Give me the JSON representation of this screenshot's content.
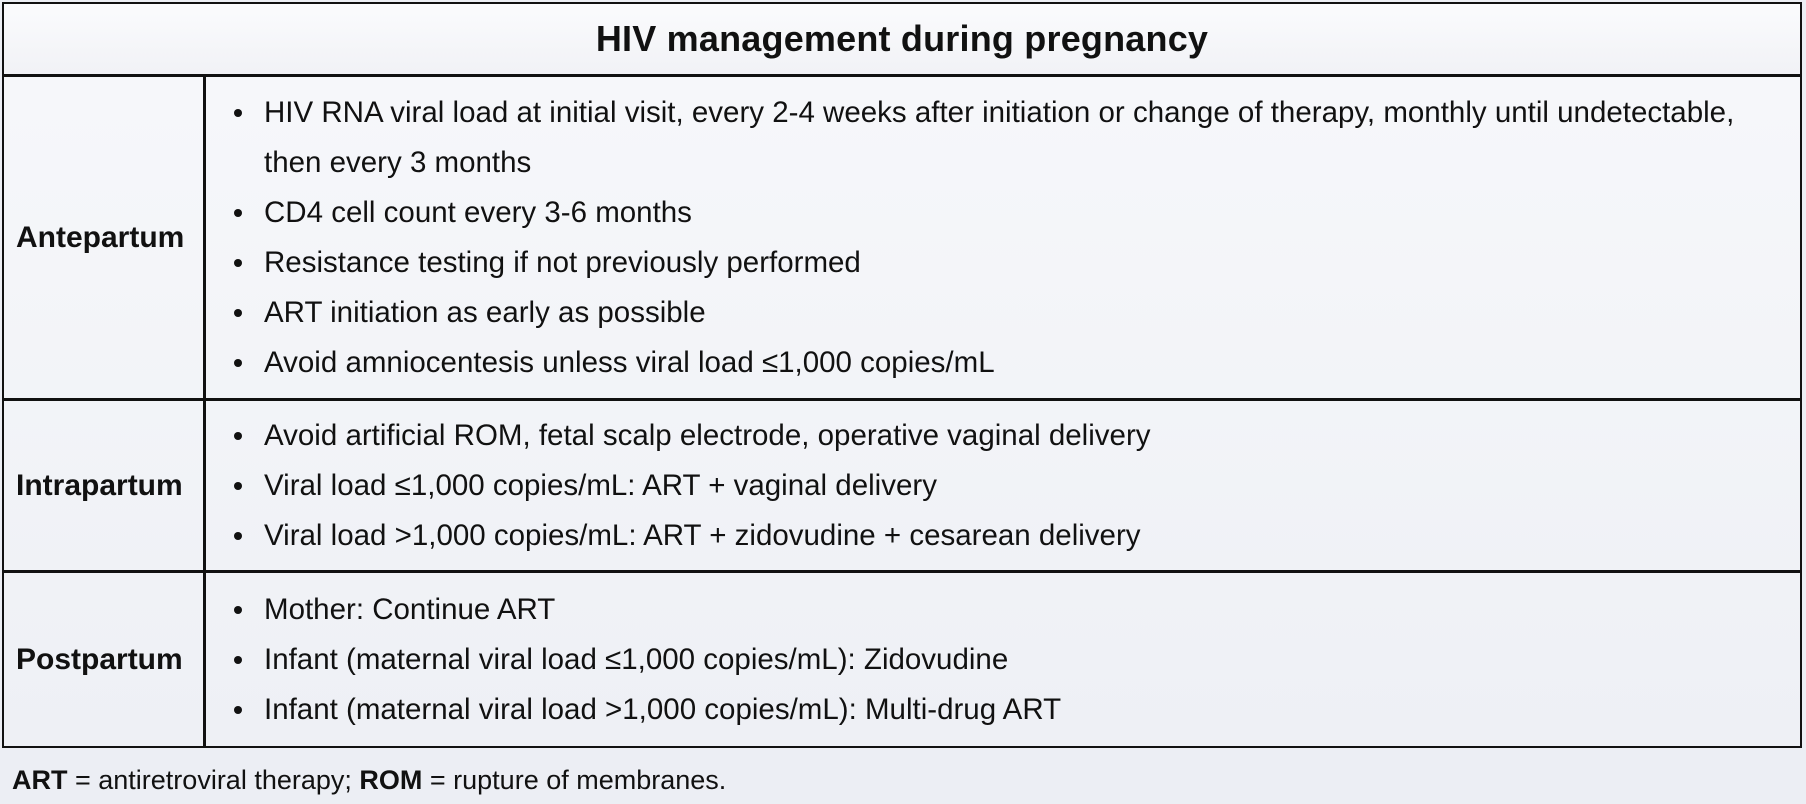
{
  "table": {
    "title": "HIV management during pregnancy",
    "rows": [
      {
        "label": "Antepartum",
        "items": [
          "HIV RNA viral load at initial visit, every 2-4 weeks after initiation or change of therapy, monthly until undetectable, then every 3 months",
          "CD4 cell count every 3-6 months",
          "Resistance testing if not previously performed",
          "ART initiation as early as possible",
          "Avoid amniocentesis unless viral load ≤1,000 copies/mL"
        ]
      },
      {
        "label": "Intrapartum",
        "items": [
          "Avoid artificial ROM, fetal scalp electrode, operative vaginal delivery",
          "Viral load ≤1,000 copies/mL: ART + vaginal delivery",
          "Viral load >1,000 copies/mL: ART + zidovudine + cesarean delivery"
        ]
      },
      {
        "label": "Postpartum",
        "items": [
          "Mother: Continue ART",
          "Infant (maternal viral load ≤1,000 copies/mL): Zidovudine",
          "Infant (maternal viral load >1,000 copies/mL): Multi-drug ART"
        ]
      }
    ]
  },
  "footnote": {
    "abbr1": "ART",
    "def1": " = antiretroviral therapy; ",
    "abbr2": "ROM",
    "def2": " = rupture of membranes."
  }
}
